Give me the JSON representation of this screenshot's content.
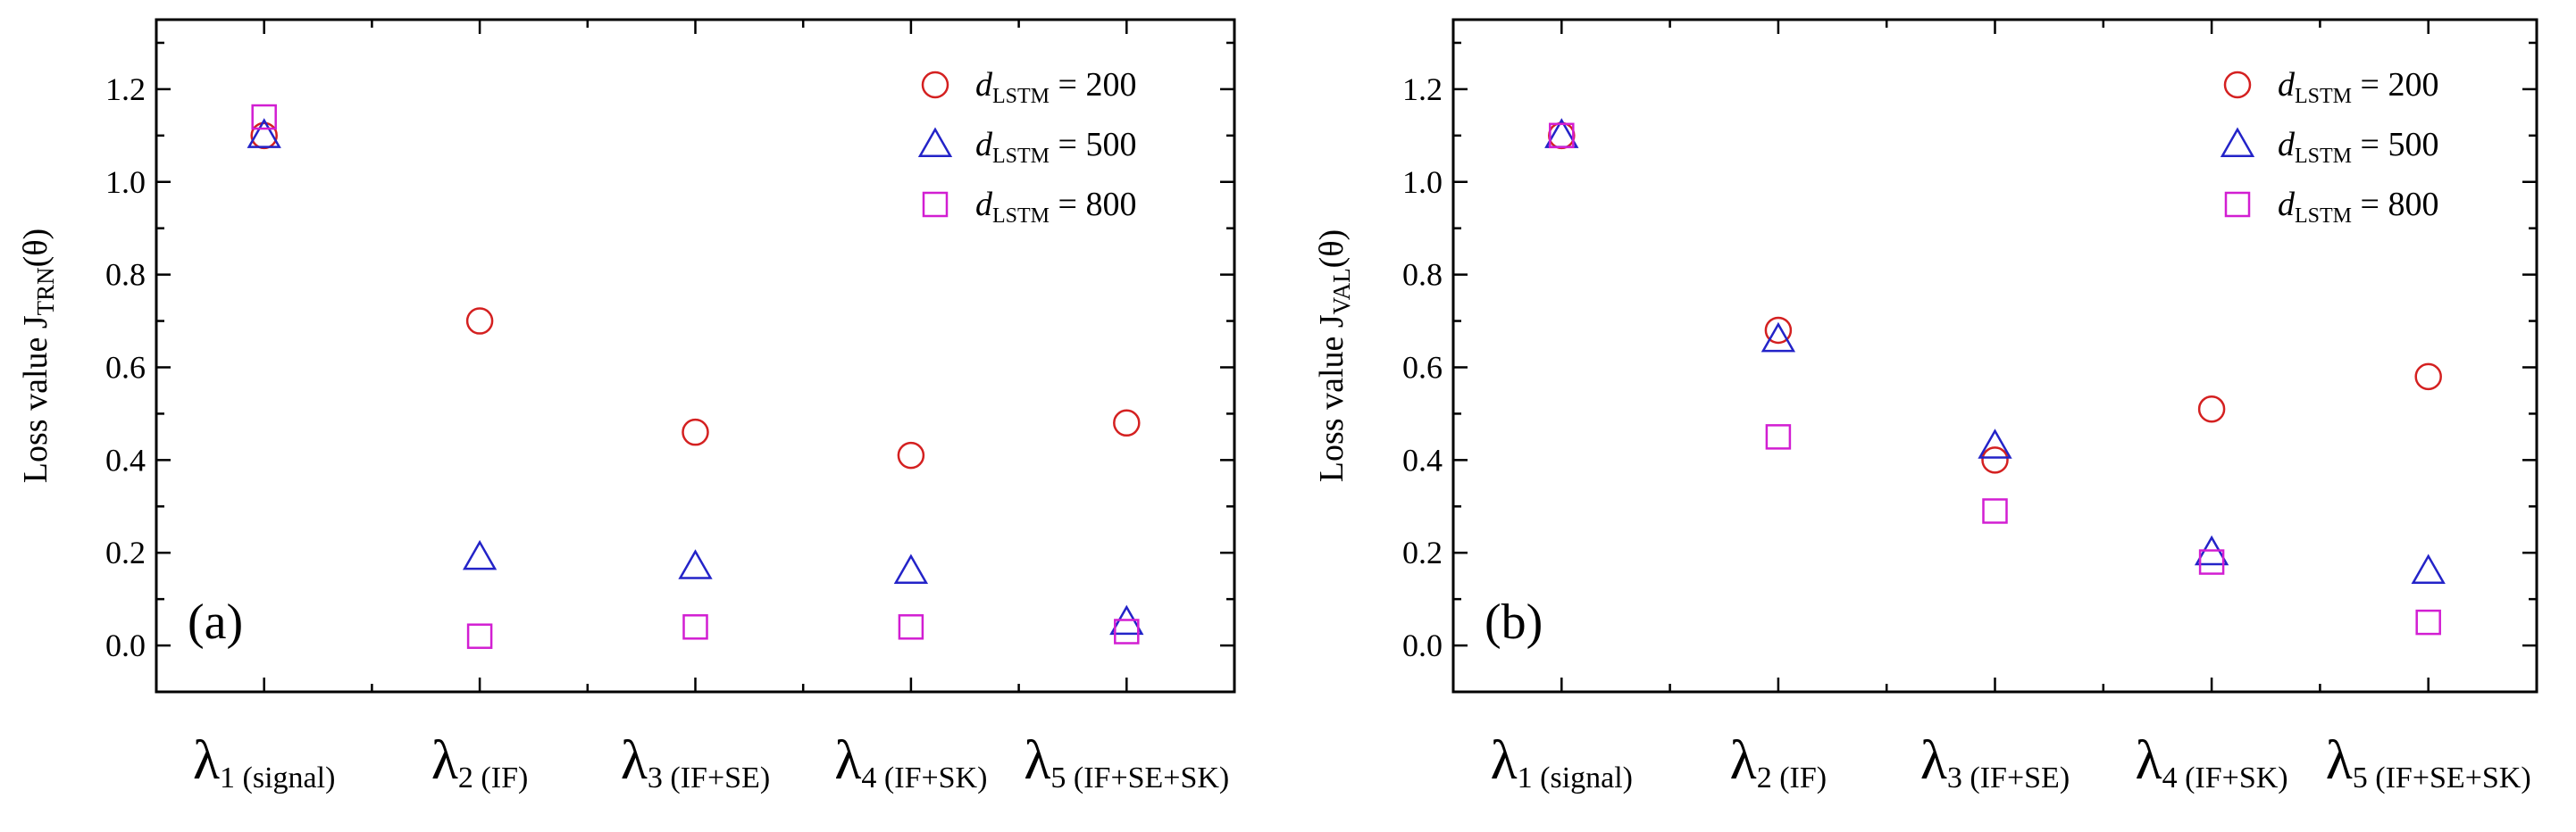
{
  "chart_data": [
    {
      "type": "scatter",
      "panel_label": "(a)",
      "ylabel_prefix": "Loss value J",
      "ylabel_sub": "TRN",
      "ylabel_suffix": "(θ)",
      "ylim": [
        -0.1,
        1.35
      ],
      "yticks": [
        "0.0",
        "0.2",
        "0.4",
        "0.6",
        "0.8",
        "1.0",
        "1.2"
      ],
      "categories": [
        {
          "main": "λ",
          "index": "1",
          "sub": "(signal)"
        },
        {
          "main": "λ",
          "index": "2",
          "sub": "(IF)"
        },
        {
          "main": "λ",
          "index": "3",
          "sub": "(IF+SE)"
        },
        {
          "main": "λ",
          "index": "4",
          "sub": "(IF+SK)"
        },
        {
          "main": "λ",
          "index": "5",
          "sub": "(IF+SE+SK)"
        }
      ],
      "legend_position": "top-right",
      "series": [
        {
          "name": "d_LSTM = 200",
          "d": "d",
          "sub": "LSTM",
          "eq": "= 200",
          "marker": "circle",
          "color": "#d42020",
          "values": [
            1.1,
            0.7,
            0.46,
            0.41,
            0.48
          ]
        },
        {
          "name": "d_LSTM = 500",
          "d": "d",
          "sub": "LSTM",
          "eq": "= 500",
          "marker": "triangle",
          "color": "#2323c8",
          "values": [
            1.1,
            0.19,
            0.17,
            0.16,
            0.05
          ]
        },
        {
          "name": "d_LSTM = 800",
          "d": "d",
          "sub": "LSTM",
          "eq": "= 800",
          "marker": "square",
          "color": "#d21ed2",
          "values": [
            1.14,
            0.02,
            0.04,
            0.04,
            0.03
          ]
        }
      ]
    },
    {
      "type": "scatter",
      "panel_label": "(b)",
      "ylabel_prefix": "Loss value J",
      "ylabel_sub": "VAL",
      "ylabel_suffix": "(θ)",
      "ylim": [
        -0.1,
        1.35
      ],
      "yticks": [
        "0.0",
        "0.2",
        "0.4",
        "0.6",
        "0.8",
        "1.0",
        "1.2"
      ],
      "categories": [
        {
          "main": "λ",
          "index": "1",
          "sub": "(signal)"
        },
        {
          "main": "λ",
          "index": "2",
          "sub": "(IF)"
        },
        {
          "main": "λ",
          "index": "3",
          "sub": "(IF+SE)"
        },
        {
          "main": "λ",
          "index": "4",
          "sub": "(IF+SK)"
        },
        {
          "main": "λ",
          "index": "5",
          "sub": "(IF+SE+SK)"
        }
      ],
      "legend_position": "top-right",
      "series": [
        {
          "name": "d_LSTM = 200",
          "d": "d",
          "sub": "LSTM",
          "eq": "= 200",
          "marker": "circle",
          "color": "#d42020",
          "values": [
            1.1,
            0.68,
            0.4,
            0.51,
            0.58
          ]
        },
        {
          "name": "d_LSTM = 500",
          "d": "d",
          "sub": "LSTM",
          "eq": "= 500",
          "marker": "triangle",
          "color": "#2323c8",
          "values": [
            1.1,
            0.66,
            0.43,
            0.2,
            0.16
          ]
        },
        {
          "name": "d_LSTM = 800",
          "d": "d",
          "sub": "LSTM",
          "eq": "= 800",
          "marker": "square",
          "color": "#d21ed2",
          "values": [
            1.1,
            0.45,
            0.29,
            0.18,
            0.05
          ]
        }
      ]
    }
  ]
}
